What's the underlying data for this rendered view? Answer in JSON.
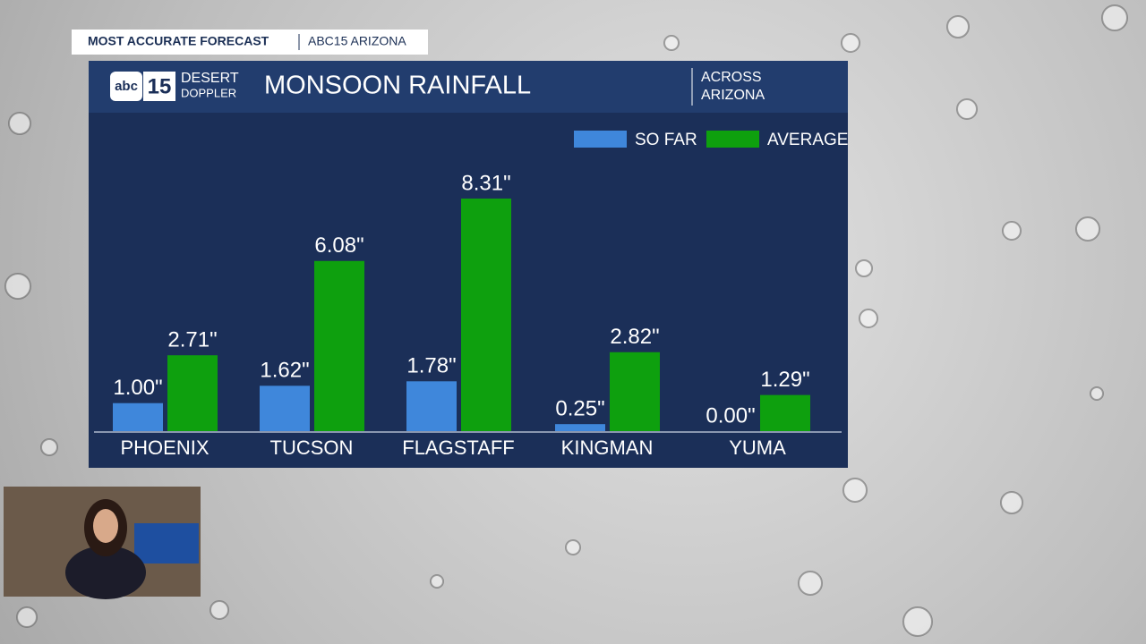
{
  "banner": {
    "left": "MOST ACCURATE FORECAST",
    "right": "ABC15 ARIZONA"
  },
  "logo": {
    "network": "abc",
    "channel": "15",
    "line1": "DESERT",
    "line2": "DOPPLER"
  },
  "chart_data": {
    "type": "bar",
    "title": "MONSOON RAINFALL",
    "subtitle": [
      "ACROSS",
      "ARIZONA"
    ],
    "categories": [
      "PHOENIX",
      "TUCSON",
      "FLAGSTAFF",
      "KINGMAN",
      "YUMA"
    ],
    "series": [
      {
        "name": "SO FAR",
        "color": "#3f87db",
        "values": [
          1,
          1.62,
          1.78,
          0.25,
          0
        ],
        "value_labels": [
          "1.00\"",
          "1.62\"",
          "1.78\"",
          "0.25\"",
          "0.00\""
        ]
      },
      {
        "name": "AVERAGE",
        "color": "#0ea00e",
        "values": [
          2.71,
          6.08,
          8.31,
          2.82,
          1.29
        ],
        "value_labels": [
          "2.71\"",
          "6.08\"",
          "8.31\"",
          "2.82\"",
          "1.29\""
        ]
      }
    ]
  }
}
